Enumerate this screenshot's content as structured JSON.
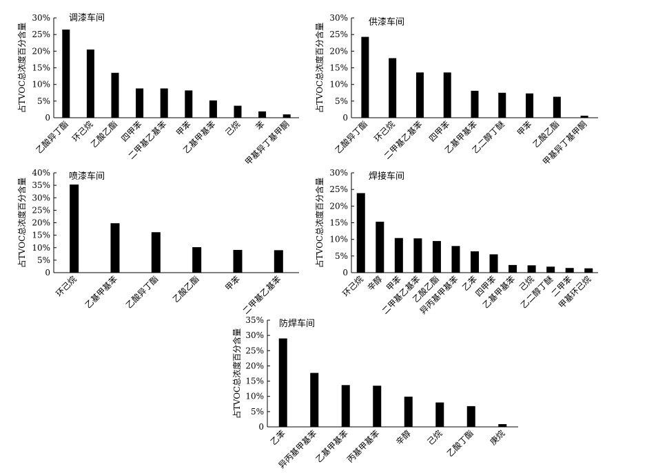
{
  "chart_data": [
    {
      "type": "bar",
      "title": "调漆车间",
      "ylabel": "占TVOC总浓度百分含量",
      "xlabel": "",
      "ylim": [
        0,
        30
      ],
      "yticks": [
        "0",
        "5%",
        "10%",
        "15%",
        "20%",
        "25%",
        "30%"
      ],
      "categories": [
        "乙酸异丁酯",
        "环己烷",
        "乙酸乙酯",
        "四甲苯",
        "二甲基乙基苯",
        "甲苯",
        "乙基甲基苯",
        "己烷",
        "苯",
        "甲基异丁基甲酮"
      ],
      "values": [
        26.5,
        20.5,
        13.5,
        8.8,
        8.8,
        8.2,
        5.2,
        3.6,
        1.9,
        1.0
      ]
    },
    {
      "type": "bar",
      "title": "供漆车间",
      "ylabel": "占TVOC总浓度百分含量",
      "xlabel": "",
      "ylim": [
        0,
        30
      ],
      "yticks": [
        "0",
        "5%",
        "10%",
        "15%",
        "20%",
        "25%",
        "30%"
      ],
      "categories": [
        "乙酸异丁酯",
        "环己烷",
        "二甲基乙基苯",
        "四甲苯",
        "乙基甲基苯",
        "乙二醇丁醚",
        "甲苯",
        "乙酸乙酯",
        "甲基异丁基甲酮"
      ],
      "values": [
        24.3,
        17.9,
        13.6,
        13.6,
        8.1,
        7.5,
        7.3,
        6.3,
        0.6
      ]
    },
    {
      "type": "bar",
      "title": "喷漆车间",
      "ylabel": "占TVOC总浓度百分含量",
      "xlabel": "",
      "ylim": [
        0,
        40
      ],
      "yticks": [
        "0",
        "5%",
        "10%",
        "15%",
        "20%",
        "25%",
        "30%",
        "35%",
        "40%"
      ],
      "categories": [
        "环己烷",
        "乙基甲基苯",
        "乙酸异丁酯",
        "乙酸乙酯",
        "甲苯",
        "二甲基乙基苯"
      ],
      "values": [
        35.3,
        19.8,
        16.2,
        10.2,
        9.1,
        9.0
      ]
    },
    {
      "type": "bar",
      "title": "焊接车间",
      "ylabel": "占TVOC总浓度百分含量",
      "xlabel": "",
      "ylim": [
        0,
        30
      ],
      "yticks": [
        "0",
        "5%",
        "10%",
        "15%",
        "20%",
        "25%",
        "30%"
      ],
      "categories": [
        "环己烷",
        "辛醇",
        "甲苯",
        "二甲基乙基苯",
        "乙酸乙酯",
        "异丙基甲基苯",
        "乙苯",
        "四甲苯",
        "乙基甲基苯",
        "己烷",
        "乙二醇丁醚",
        "二甲苯",
        "甲基环己烷"
      ],
      "values": [
        23.9,
        15.3,
        10.4,
        10.3,
        9.5,
        8.0,
        6.4,
        5.5,
        2.3,
        2.2,
        1.8,
        1.4,
        1.3
      ]
    },
    {
      "type": "bar",
      "title": "防焊车间",
      "ylabel": "占TVOC总浓度百分含量",
      "xlabel": "",
      "ylim": [
        0,
        35
      ],
      "yticks": [
        "0",
        "5%",
        "10%",
        "15%",
        "20%",
        "25%",
        "30%",
        "35%"
      ],
      "categories": [
        "乙苯",
        "异丙基甲基苯",
        "乙基甲基苯",
        "丙基甲基苯",
        "辛醇",
        "己烷",
        "乙酸丁酯",
        "庚烷"
      ],
      "values": [
        29.0,
        17.7,
        13.7,
        13.5,
        9.9,
        8.0,
        6.8,
        0.9
      ]
    }
  ]
}
